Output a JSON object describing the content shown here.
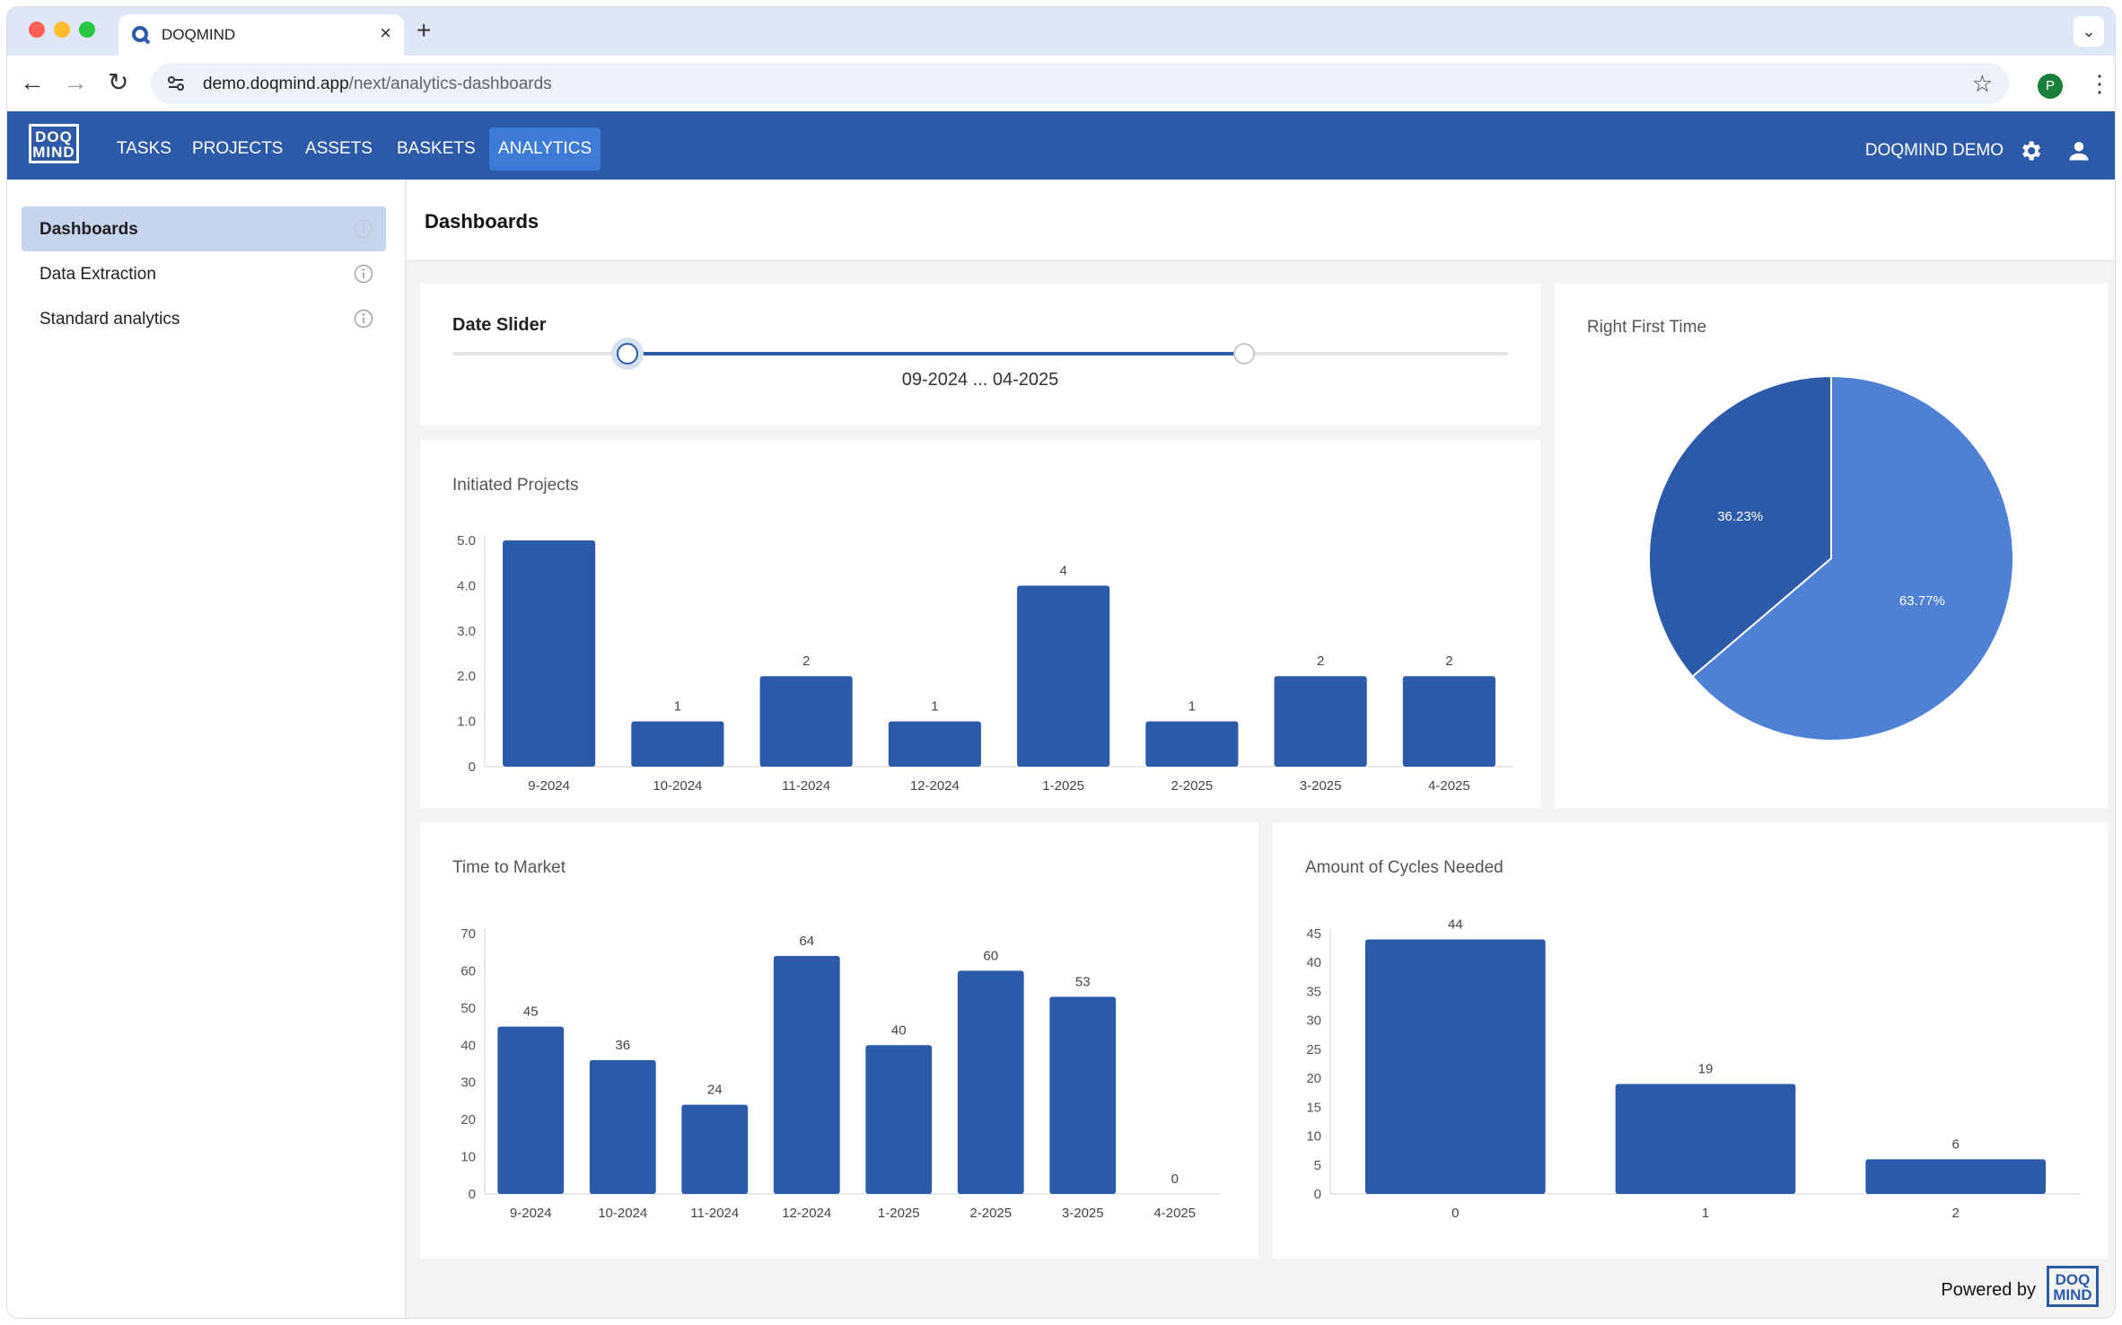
{
  "browser": {
    "tab_title": "DOQMIND",
    "url_domain": "demo.doqmind.app",
    "url_path": "/next/analytics-dashboards",
    "profile_initial": "P"
  },
  "app": {
    "logo_line1": "DOQ",
    "logo_line2": "MIND",
    "nav": [
      "TASKS",
      "PROJECTS",
      "ASSETS",
      "BASKETS",
      "ANALYTICS"
    ],
    "active_nav": "ANALYTICS",
    "org_name": "DOQMIND DEMO"
  },
  "sidebar": {
    "items": [
      {
        "label": "Dashboards",
        "active": true
      },
      {
        "label": "Data Extraction",
        "active": false
      },
      {
        "label": "Standard analytics",
        "active": false
      }
    ]
  },
  "page": {
    "title": "Dashboards",
    "powered_by": "Powered by"
  },
  "date_slider": {
    "title": "Date Slider",
    "value_text": "09-2024 ... 04-2025",
    "range_start": 0.166,
    "range_end": 0.75
  },
  "colors": {
    "brand": "#2c5aa8",
    "pie_light": "#4e80d4",
    "pie_dark": "#2c5aa8"
  },
  "chart_data": [
    {
      "id": "initiated",
      "type": "bar",
      "title": "Initiated Projects",
      "categories": [
        "9-2024",
        "10-2024",
        "11-2024",
        "12-2024",
        "1-2025",
        "2-2025",
        "3-2025",
        "4-2025"
      ],
      "values": [
        5,
        1,
        2,
        1,
        4,
        1,
        2,
        2
      ],
      "data_labels": [
        "",
        "1",
        "2",
        "1",
        "4",
        "1",
        "2",
        "2"
      ],
      "ylim": [
        0,
        5
      ],
      "yticks": [
        "0",
        "1.0",
        "2.0",
        "3.0",
        "4.0",
        "5.0"
      ],
      "grid": false
    },
    {
      "id": "rft",
      "type": "pie",
      "title": "Right First Time",
      "slices": [
        {
          "label": "63.77%",
          "value": 63.77,
          "color": "#4e80d4"
        },
        {
          "label": "36.23%",
          "value": 36.23,
          "color": "#2c5aa8"
        }
      ]
    },
    {
      "id": "ttm",
      "type": "bar",
      "title": "Time to Market",
      "categories": [
        "9-2024",
        "10-2024",
        "11-2024",
        "12-2024",
        "1-2025",
        "2-2025",
        "3-2025",
        "4-2025"
      ],
      "values": [
        45,
        36,
        24,
        64,
        40,
        60,
        53,
        0
      ],
      "data_labels": [
        "45",
        "36",
        "24",
        "64",
        "40",
        "60",
        "53",
        "0"
      ],
      "ylim": [
        0,
        70
      ],
      "yticks": [
        "0",
        "10",
        "20",
        "30",
        "40",
        "50",
        "60",
        "70"
      ],
      "grid": false
    },
    {
      "id": "cycles",
      "type": "bar",
      "title": "Amount of Cycles Needed",
      "categories": [
        "0",
        "1",
        "2"
      ],
      "values": [
        44,
        19,
        6
      ],
      "data_labels": [
        "44",
        "19",
        "6"
      ],
      "ylim": [
        0,
        45
      ],
      "yticks": [
        "0",
        "5",
        "10",
        "15",
        "20",
        "25",
        "30",
        "35",
        "40",
        "45"
      ],
      "grid": false
    }
  ]
}
